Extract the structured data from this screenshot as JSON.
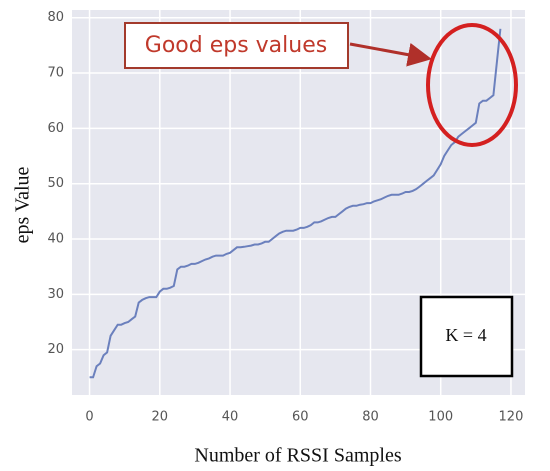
{
  "chart_data": {
    "type": "line",
    "xlabel": "Number of RSSI Samples",
    "ylabel": "eps Value",
    "annotations": [
      "Good eps values",
      "K = 4"
    ],
    "x": [
      0,
      1,
      2,
      3,
      4,
      5,
      6,
      7,
      8,
      9,
      10,
      11,
      12,
      13,
      14,
      15,
      16,
      17,
      18,
      19,
      20,
      21,
      22,
      23,
      24,
      25,
      26,
      27,
      28,
      29,
      30,
      31,
      32,
      33,
      34,
      35,
      36,
      37,
      38,
      39,
      40,
      41,
      42,
      43,
      44,
      45,
      46,
      47,
      48,
      49,
      50,
      51,
      52,
      53,
      54,
      55,
      56,
      57,
      58,
      59,
      60,
      61,
      62,
      63,
      64,
      65,
      66,
      67,
      68,
      69,
      70,
      71,
      72,
      73,
      74,
      75,
      76,
      77,
      78,
      79,
      80,
      81,
      82,
      83,
      84,
      85,
      86,
      87,
      88,
      89,
      90,
      91,
      92,
      93,
      94,
      95,
      96,
      97,
      98,
      99,
      100,
      101,
      102,
      103,
      104,
      105,
      106,
      107,
      108,
      109,
      110,
      111,
      112,
      113,
      114,
      115,
      116,
      117
    ],
    "series": [
      {
        "name": "eps",
        "color": "#6b80bd",
        "values": [
          15,
          15,
          17,
          17.5,
          19,
          19.5,
          22.5,
          23.5,
          24.5,
          24.5,
          24.8,
          25,
          25.5,
          26,
          28.5,
          29,
          29.3,
          29.5,
          29.5,
          29.5,
          30.5,
          31,
          31,
          31.2,
          31.5,
          34.5,
          35,
          35,
          35.2,
          35.5,
          35.5,
          35.7,
          36,
          36.3,
          36.5,
          36.8,
          37,
          37,
          37,
          37.3,
          37.5,
          38,
          38.5,
          38.5,
          38.6,
          38.7,
          38.8,
          39,
          39,
          39.2,
          39.5,
          39.5,
          40,
          40.5,
          41,
          41.3,
          41.5,
          41.5,
          41.5,
          41.7,
          42,
          42,
          42.2,
          42.5,
          43,
          43,
          43.2,
          43.5,
          43.8,
          44,
          44,
          44.5,
          45,
          45.5,
          45.8,
          46,
          46,
          46.2,
          46.3,
          46.5,
          46.5,
          46.8,
          47,
          47.2,
          47.5,
          47.8,
          48,
          48,
          48,
          48.2,
          48.5,
          48.5,
          48.7,
          49,
          49.5,
          50,
          50.5,
          51,
          51.5,
          52.5,
          53.5,
          55,
          56,
          57,
          57.5,
          58.5,
          59,
          59.5,
          60,
          60.5,
          61,
          64.5,
          65,
          65,
          65.5,
          66,
          72,
          78
        ]
      }
    ],
    "xlim": [
      -5,
      124
    ],
    "ylim": [
      11.8,
      81.4
    ],
    "xticks": [
      0,
      20,
      40,
      60,
      80,
      100,
      120
    ],
    "yticks": [
      20,
      30,
      40,
      50,
      60,
      70,
      80
    ],
    "grid": true
  }
}
